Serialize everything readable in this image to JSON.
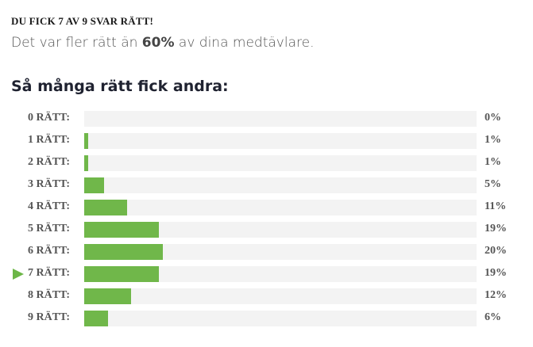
{
  "result": {
    "title": "DU FICK 7 AV 9 SVAR RÄTT!",
    "sub_before": "Det var fler rätt än ",
    "sub_bold": "60%",
    "sub_after": " av dina medtävlare."
  },
  "section": {
    "title": "Så många rätt fick andra:"
  },
  "colors": {
    "bar": "#70b74a",
    "track": "#f3f3f3",
    "marker": "#6cb647"
  },
  "user_score_index": 7,
  "rows": [
    {
      "label": "0 RÄTT:",
      "pct": "0%",
      "value": 0
    },
    {
      "label": "1 RÄTT:",
      "pct": "1%",
      "value": 1
    },
    {
      "label": "2 RÄTT:",
      "pct": "1%",
      "value": 1
    },
    {
      "label": "3 RÄTT:",
      "pct": "5%",
      "value": 5
    },
    {
      "label": "4 RÄTT:",
      "pct": "11%",
      "value": 11
    },
    {
      "label": "5 RÄTT:",
      "pct": "19%",
      "value": 19
    },
    {
      "label": "6 RÄTT:",
      "pct": "20%",
      "value": 20
    },
    {
      "label": "7 RÄTT:",
      "pct": "19%",
      "value": 19
    },
    {
      "label": "8 RÄTT:",
      "pct": "12%",
      "value": 12
    },
    {
      "label": "9 RÄTT:",
      "pct": "6%",
      "value": 6
    }
  ],
  "chart_data": {
    "type": "bar",
    "orientation": "horizontal",
    "title": "Så många rätt fick andra:",
    "categories": [
      "0 RÄTT",
      "1 RÄTT",
      "2 RÄTT",
      "3 RÄTT",
      "4 RÄTT",
      "5 RÄTT",
      "6 RÄTT",
      "7 RÄTT",
      "8 RÄTT",
      "9 RÄTT"
    ],
    "values": [
      0,
      1,
      1,
      5,
      11,
      19,
      20,
      19,
      12,
      6
    ],
    "xlabel": "",
    "ylabel": "",
    "unit": "%",
    "highlighted_category": "7 RÄTT",
    "grid": false,
    "legend": null
  }
}
